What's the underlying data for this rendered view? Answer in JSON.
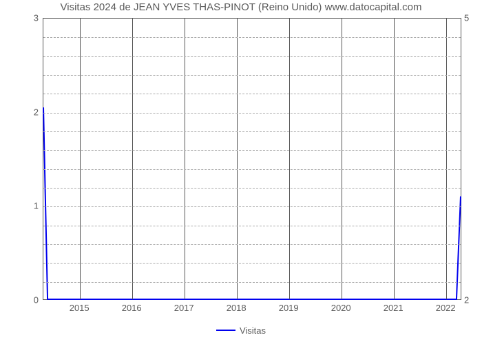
{
  "chart": {
    "type": "line",
    "title": "Visitas 2024 de JEAN YVES THAS-PINOT (Reino Unido) www.datocapital.com",
    "title_fontsize": 15,
    "title_color": "#5a5a5a",
    "background_color": "#ffffff",
    "plot_border_color": "#555555",
    "minor_grid_color": "#aaaaaa",
    "minor_grid_dash": "3,3",
    "x": {
      "min": 2014.3,
      "max": 2022.3,
      "ticks": [
        2015,
        2016,
        2017,
        2018,
        2019,
        2020,
        2021,
        2022
      ],
      "tick_labels": [
        "2015",
        "2016",
        "2017",
        "2018",
        "2019",
        "2020",
        "2021",
        "2022"
      ],
      "tick_fontsize": 13,
      "tick_color": "#5a5a5a",
      "gridlines_at_ticks": true
    },
    "y_left": {
      "min": 0,
      "max": 3,
      "ticks": [
        0,
        1,
        2,
        3
      ],
      "tick_labels": [
        "0",
        "1",
        "2",
        "3"
      ],
      "minor_step": 0.2,
      "tick_fontsize": 13,
      "tick_color": "#5a5a5a"
    },
    "y_right": {
      "ticks": [
        0,
        3
      ],
      "tick_labels": [
        "2",
        "5"
      ],
      "tick_fontsize": 13,
      "tick_color": "#5a5a5a"
    },
    "legend": {
      "items": [
        {
          "label": "Visitas",
          "color": "#0000ee"
        }
      ],
      "fontsize": 13,
      "swatch_width": 28,
      "swatch_height": 2
    },
    "series": [
      {
        "name": "Visitas",
        "color": "#0000ee",
        "line_width": 2,
        "points": [
          {
            "x": 2014.3,
            "y": 2.05
          },
          {
            "x": 2014.38,
            "y": 0
          },
          {
            "x": 2022.22,
            "y": 0
          },
          {
            "x": 2022.3,
            "y": 1.1
          }
        ]
      }
    ]
  }
}
